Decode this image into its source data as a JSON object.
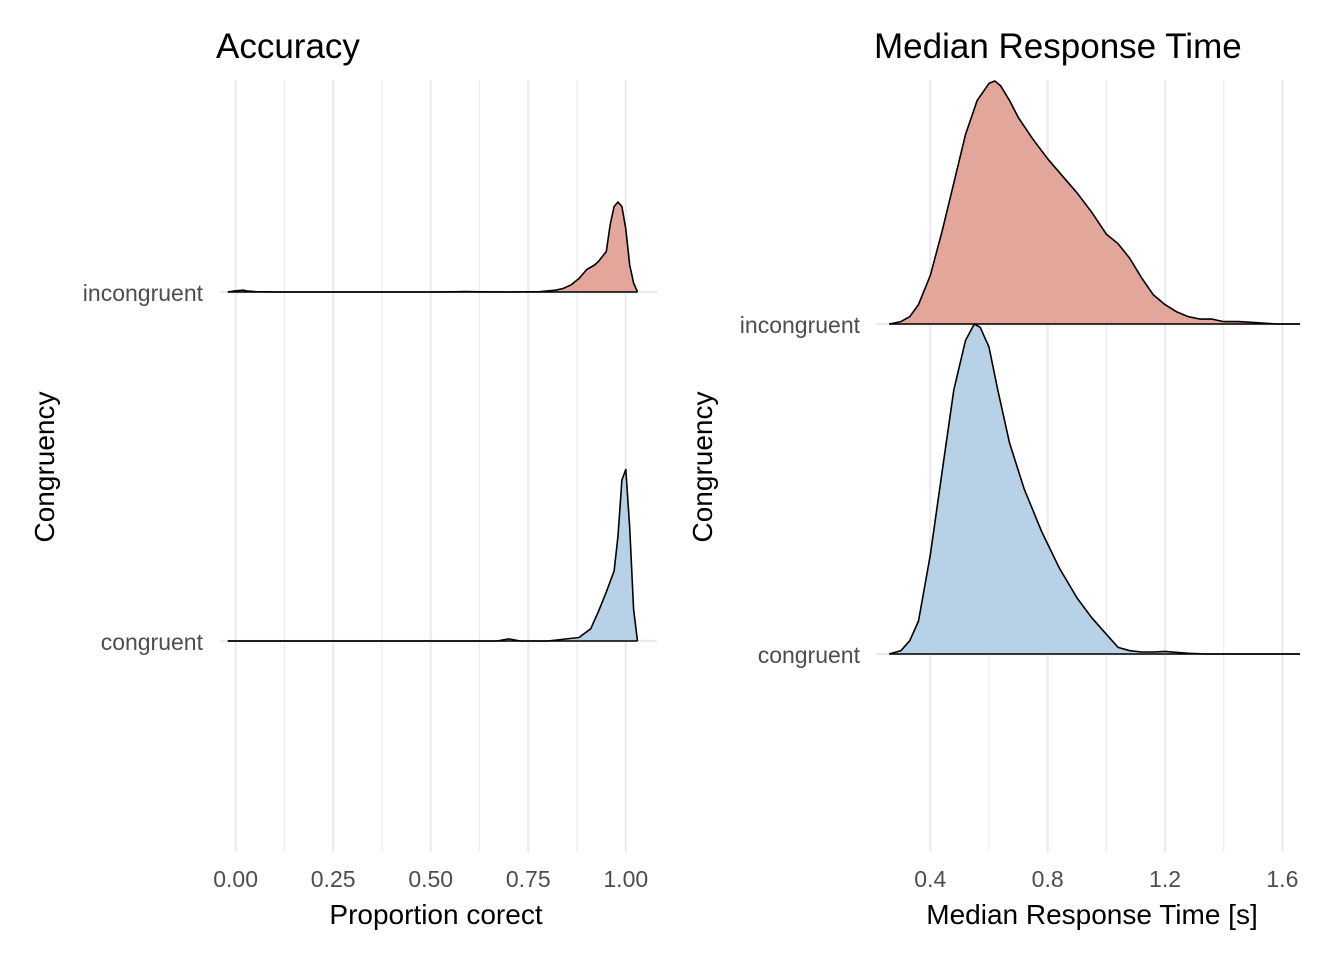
{
  "chart_data": [
    {
      "type": "area",
      "subtype": "ridgeline-density",
      "title": "Accuracy",
      "xlabel": "Proportion corect",
      "ylabel": "Congruency",
      "xlim": [
        -0.04,
        1.08
      ],
      "x_ticks": [
        "0.00",
        "0.25",
        "0.50",
        "0.75",
        "1.00"
      ],
      "x_tick_values": [
        0.0,
        0.25,
        0.5,
        0.75,
        1.0
      ],
      "categories": [
        "congruent",
        "incongruent"
      ],
      "grid": true,
      "legend": "none",
      "series": [
        {
          "name": "incongruent",
          "color": "#e0a295",
          "x": [
            -0.02,
            0.0,
            0.02,
            0.03,
            0.05,
            0.1,
            0.2,
            0.3,
            0.4,
            0.5,
            0.56,
            0.59,
            0.62,
            0.7,
            0.78,
            0.8,
            0.82,
            0.84,
            0.86,
            0.88,
            0.9,
            0.92,
            0.93,
            0.95,
            0.96,
            0.97,
            0.98,
            0.99,
            1.0,
            1.01,
            1.02,
            1.03
          ],
          "y": [
            0.0,
            0.013,
            0.02,
            0.01,
            0.005,
            0.0,
            0.0,
            0.0,
            0.0,
            0.0,
            0.002,
            0.005,
            0.002,
            0.0,
            0.003,
            0.012,
            0.02,
            0.04,
            0.08,
            0.15,
            0.25,
            0.3,
            0.34,
            0.45,
            0.75,
            0.95,
            1.0,
            0.95,
            0.7,
            0.3,
            0.1,
            0.0
          ]
        },
        {
          "name": "congruent",
          "color": "#b3cfe5",
          "x": [
            -0.02,
            0.1,
            0.3,
            0.5,
            0.67,
            0.7,
            0.73,
            0.8,
            0.88,
            0.91,
            0.93,
            0.95,
            0.97,
            0.98,
            0.99,
            1.0,
            1.01,
            1.02,
            1.03
          ],
          "y": [
            0.0,
            0.0,
            0.0,
            0.0,
            0.0,
            0.012,
            0.0,
            0.0,
            0.02,
            0.07,
            0.17,
            0.28,
            0.4,
            0.6,
            0.92,
            0.98,
            0.65,
            0.18,
            0.0
          ]
        }
      ]
    },
    {
      "type": "area",
      "subtype": "ridgeline-density",
      "title": "Median Response Time",
      "xlabel": "Median Response Time [s]",
      "ylabel": "Congruency",
      "xlim": [
        0.215,
        1.66
      ],
      "x_ticks": [
        "0.4",
        "0.8",
        "1.2",
        "1.6"
      ],
      "x_tick_values": [
        0.4,
        0.8,
        1.2,
        1.6
      ],
      "categories": [
        "congruent",
        "incongruent"
      ],
      "grid": true,
      "legend": "none",
      "series": [
        {
          "name": "incongruent",
          "color": "#e0a295",
          "x": [
            0.26,
            0.3,
            0.33,
            0.36,
            0.4,
            0.44,
            0.48,
            0.52,
            0.56,
            0.6,
            0.62,
            0.64,
            0.67,
            0.7,
            0.75,
            0.8,
            0.85,
            0.9,
            0.95,
            1.0,
            1.04,
            1.08,
            1.12,
            1.16,
            1.2,
            1.24,
            1.28,
            1.32,
            1.36,
            1.4,
            1.45,
            1.52,
            1.58,
            1.66
          ],
          "y": [
            0.0,
            0.01,
            0.03,
            0.08,
            0.2,
            0.38,
            0.58,
            0.78,
            0.92,
            0.99,
            1.0,
            0.98,
            0.92,
            0.85,
            0.76,
            0.68,
            0.61,
            0.54,
            0.46,
            0.37,
            0.33,
            0.27,
            0.19,
            0.12,
            0.08,
            0.05,
            0.03,
            0.02,
            0.02,
            0.01,
            0.01,
            0.005,
            0.0,
            0.0
          ]
        },
        {
          "name": "congruent",
          "color": "#b3cfe5",
          "x": [
            0.26,
            0.3,
            0.33,
            0.36,
            0.4,
            0.44,
            0.48,
            0.52,
            0.55,
            0.57,
            0.6,
            0.63,
            0.67,
            0.72,
            0.78,
            0.84,
            0.9,
            0.95,
            1.0,
            1.04,
            1.08,
            1.12,
            1.16,
            1.2,
            1.24,
            1.28,
            1.34,
            1.4,
            1.66
          ],
          "y": [
            0.0,
            0.01,
            0.04,
            0.1,
            0.3,
            0.55,
            0.8,
            0.95,
            1.0,
            0.99,
            0.93,
            0.8,
            0.64,
            0.5,
            0.37,
            0.26,
            0.17,
            0.11,
            0.06,
            0.02,
            0.01,
            0.006,
            0.006,
            0.008,
            0.005,
            0.002,
            0.0,
            0.0,
            0.0
          ]
        }
      ]
    }
  ]
}
